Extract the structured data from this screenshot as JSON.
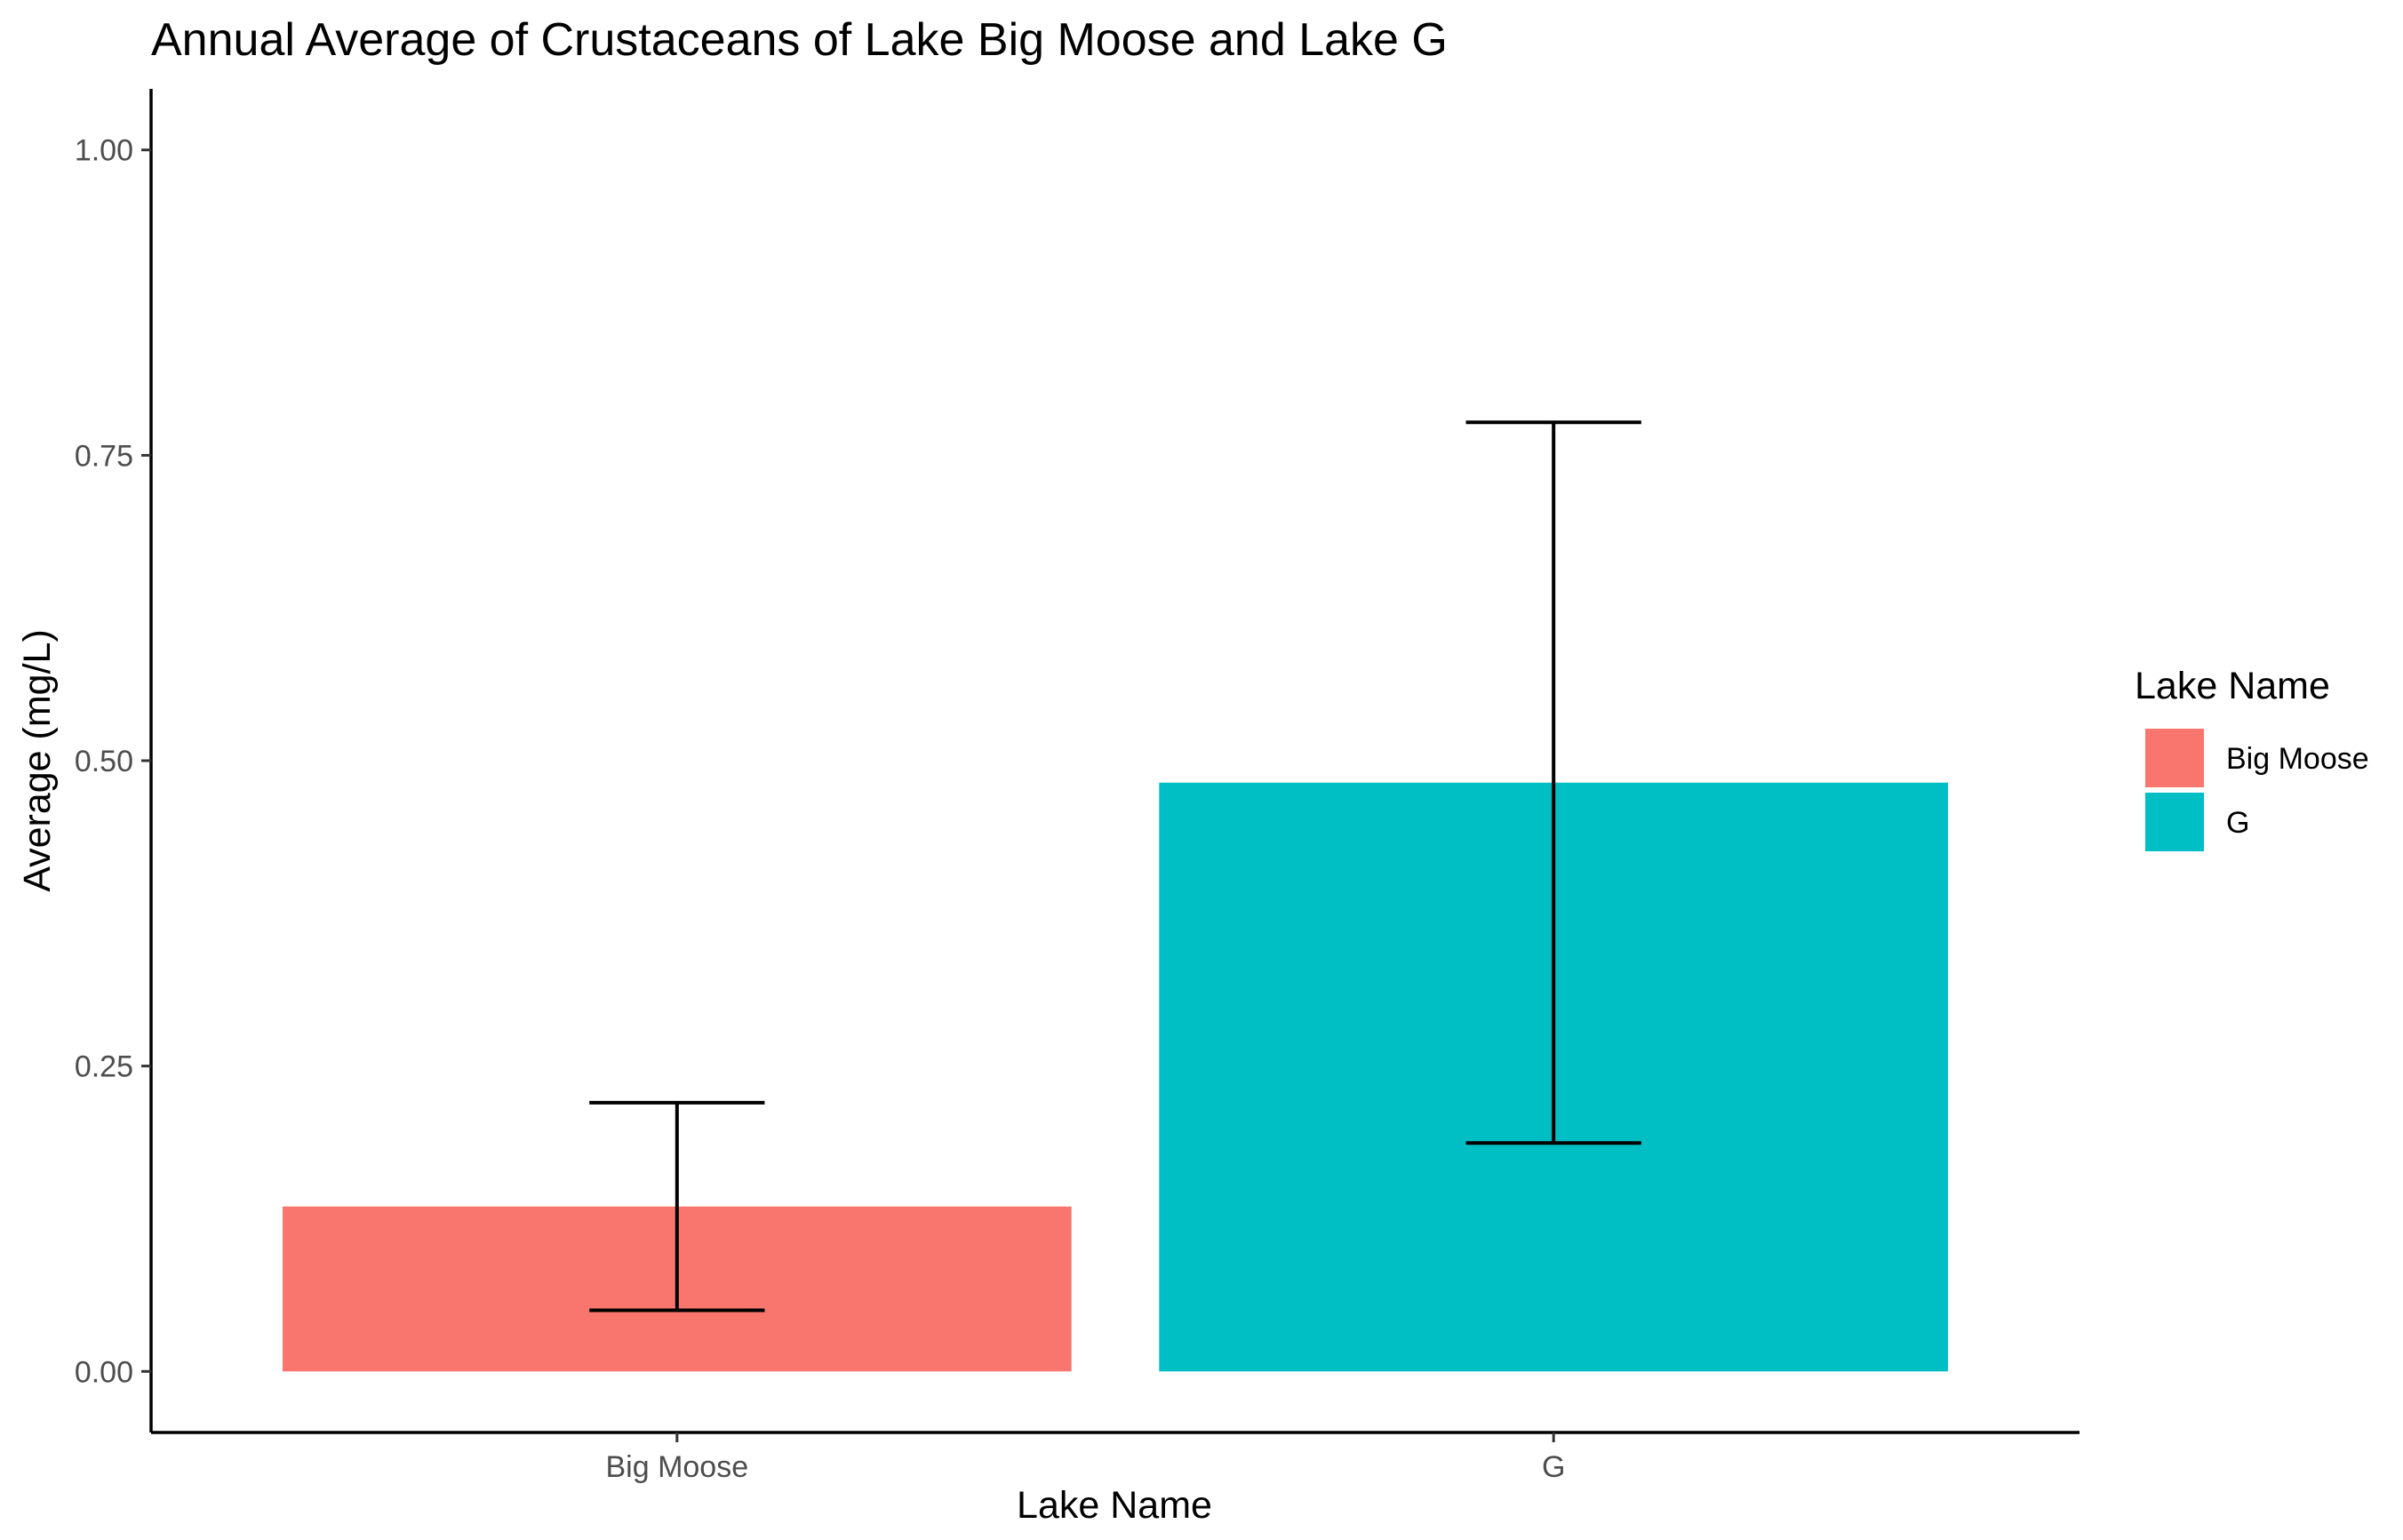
{
  "chart_data": {
    "type": "bar",
    "title": "Annual Average of Crustaceans of Lake Big Moose and Lake G",
    "xlabel": "Lake Name",
    "ylabel": "Average (mg/L)",
    "categories": [
      "Big Moose",
      "G"
    ],
    "values": [
      0.135,
      0.482
    ],
    "error_bars": [
      {
        "low": 0.05,
        "high": 0.22
      },
      {
        "low": 0.187,
        "high": 0.777
      }
    ],
    "colors": [
      "#F8766D",
      "#00BFC4"
    ],
    "ylim": [
      -0.05,
      1.05
    ],
    "yticks": [
      0.0,
      0.25,
      0.5,
      0.75,
      1.0
    ],
    "ytick_labels": [
      "0.00",
      "0.25",
      "0.50",
      "0.75",
      "1.00"
    ],
    "grid": false,
    "legend": {
      "title": "Lake Name",
      "position": "right",
      "entries": [
        {
          "label": "Big Moose",
          "color": "#F8766D"
        },
        {
          "label": "G",
          "color": "#00BFC4"
        }
      ]
    }
  }
}
